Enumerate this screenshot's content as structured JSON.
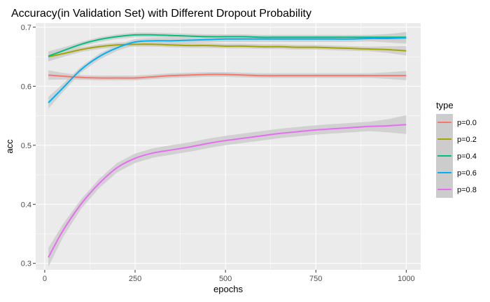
{
  "chart_data": {
    "type": "line",
    "title": "Accuracy(in Validation Set) with Different Dropout Probability",
    "xlabel": "epochs",
    "ylabel": "acc",
    "xlim": [
      -25,
      1040
    ],
    "ylim": [
      0.289,
      0.707
    ],
    "x_ticks": [
      0,
      250,
      500,
      750,
      1000
    ],
    "y_ticks": [
      0.3,
      0.4,
      0.5,
      0.6,
      0.7
    ],
    "x_tick_labels": [
      "0",
      "250",
      "500",
      "750",
      "1000"
    ],
    "y_tick_labels": [
      "0.3",
      "0.4",
      "0.5",
      "0.6",
      "0.7"
    ],
    "grid": true,
    "panel_background": "#ebebeb",
    "ribbon_color": "#cccccc",
    "legend": {
      "title": "type",
      "position": "right",
      "entries": [
        "p=0.0",
        "p=0.2",
        "p=0.4",
        "p=0.6",
        "p=0.8"
      ]
    },
    "series": [
      {
        "name": "p=0.0",
        "color": "#f8766d",
        "x": [
          10,
          50,
          100,
          150,
          200,
          250,
          300,
          350,
          400,
          450,
          500,
          550,
          600,
          650,
          700,
          750,
          800,
          850,
          900,
          950,
          1000
        ],
        "y": [
          0.619,
          0.617,
          0.615,
          0.614,
          0.614,
          0.614,
          0.616,
          0.618,
          0.619,
          0.62,
          0.62,
          0.619,
          0.618,
          0.618,
          0.618,
          0.618,
          0.618,
          0.618,
          0.618,
          0.618,
          0.618
        ],
        "band": 0.004
      },
      {
        "name": "p=0.2",
        "color": "#a3a500",
        "x": [
          10,
          50,
          100,
          150,
          200,
          250,
          300,
          350,
          400,
          450,
          500,
          550,
          600,
          650,
          700,
          750,
          800,
          850,
          900,
          950,
          1000
        ],
        "y": [
          0.65,
          0.655,
          0.662,
          0.667,
          0.67,
          0.671,
          0.671,
          0.67,
          0.669,
          0.669,
          0.668,
          0.668,
          0.667,
          0.667,
          0.666,
          0.666,
          0.665,
          0.664,
          0.663,
          0.662,
          0.66
        ],
        "band": 0.004
      },
      {
        "name": "p=0.4",
        "color": "#00bf7d",
        "x": [
          10,
          50,
          100,
          150,
          200,
          250,
          300,
          350,
          400,
          450,
          500,
          550,
          600,
          650,
          700,
          750,
          800,
          850,
          900,
          950,
          1000
        ],
        "y": [
          0.651,
          0.66,
          0.671,
          0.679,
          0.684,
          0.687,
          0.687,
          0.686,
          0.685,
          0.684,
          0.684,
          0.684,
          0.683,
          0.683,
          0.683,
          0.683,
          0.683,
          0.683,
          0.683,
          0.683,
          0.683
        ],
        "band": 0.004
      },
      {
        "name": "p=0.6",
        "color": "#00b0f6",
        "x": [
          10,
          50,
          100,
          150,
          200,
          250,
          300,
          350,
          400,
          450,
          500,
          550,
          600,
          650,
          700,
          750,
          800,
          850,
          900,
          950,
          1000
        ],
        "y": [
          0.572,
          0.597,
          0.628,
          0.65,
          0.665,
          0.675,
          0.677,
          0.677,
          0.678,
          0.679,
          0.68,
          0.68,
          0.68,
          0.68,
          0.68,
          0.68,
          0.68,
          0.68,
          0.681,
          0.681,
          0.682
        ],
        "band": 0.005
      },
      {
        "name": "p=0.8",
        "color": "#e76bf3",
        "x": [
          10,
          50,
          100,
          150,
          200,
          250,
          300,
          350,
          400,
          450,
          500,
          550,
          600,
          650,
          700,
          750,
          800,
          850,
          900,
          950,
          1000
        ],
        "y": [
          0.31,
          0.355,
          0.4,
          0.435,
          0.462,
          0.478,
          0.487,
          0.492,
          0.497,
          0.503,
          0.508,
          0.512,
          0.516,
          0.52,
          0.523,
          0.526,
          0.528,
          0.53,
          0.532,
          0.533,
          0.535
        ],
        "band": 0.008
      }
    ]
  }
}
